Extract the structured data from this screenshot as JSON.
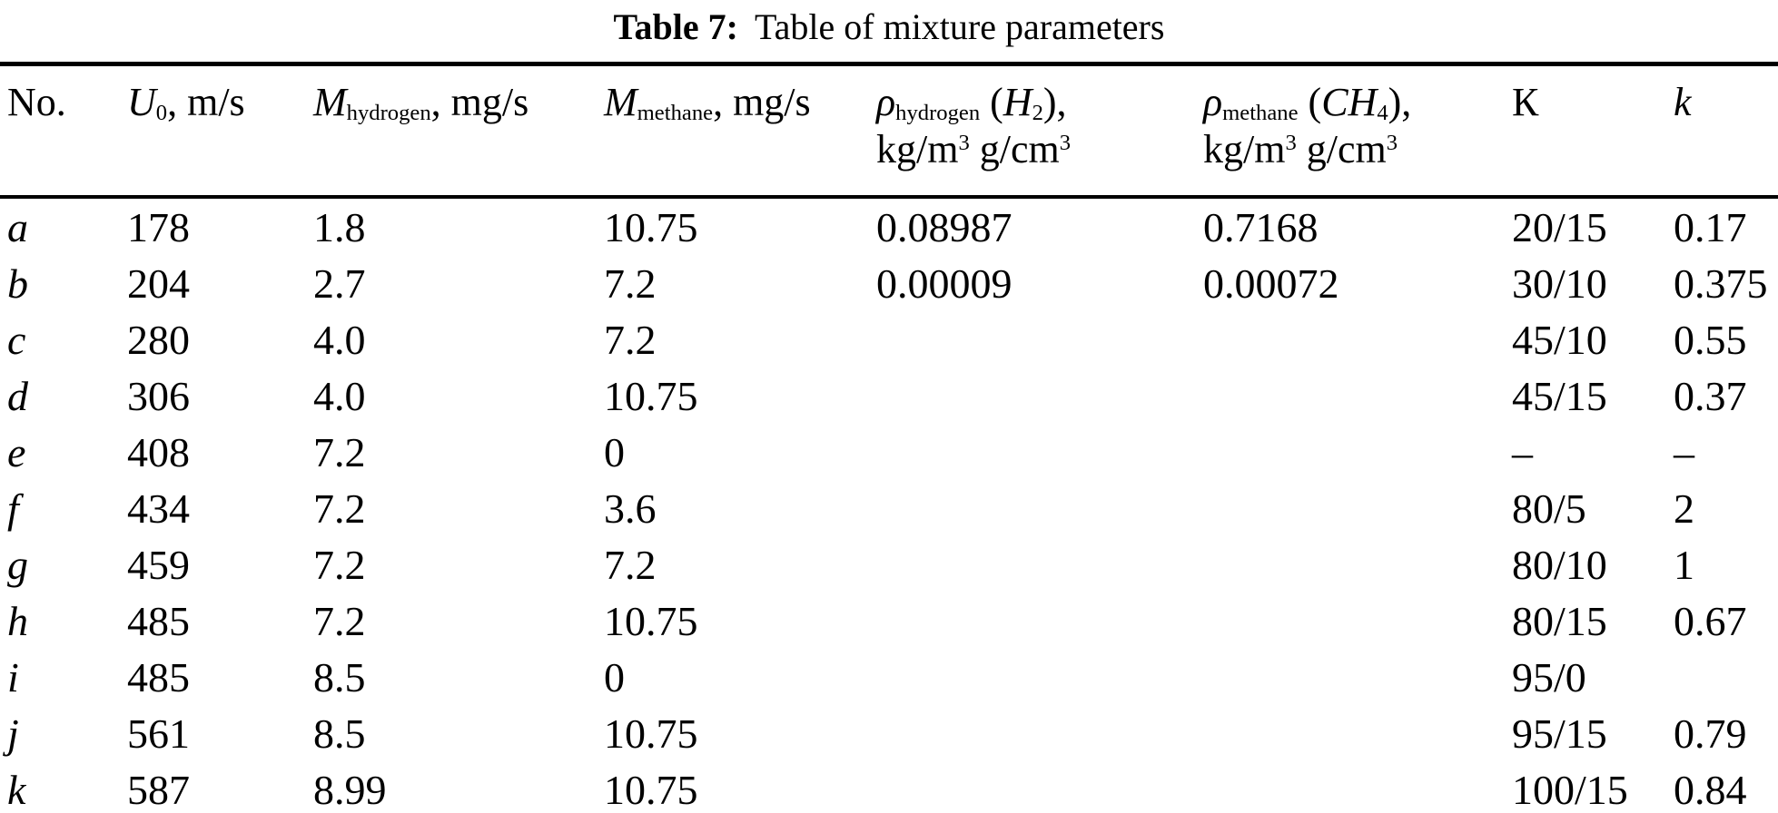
{
  "page": {
    "background_color": "#ffffff",
    "text_color": "#000000"
  },
  "caption": {
    "label": "Table 7:",
    "text": "Table of mixture parameters"
  },
  "table": {
    "header": {
      "no": "No.",
      "u0": {
        "main": "U",
        "sub": "0",
        "tail": ", m/s"
      },
      "mh": {
        "main": "M",
        "sub": "hydrogen",
        "tail": ", mg/s"
      },
      "mm": {
        "main": "M",
        "sub": "methane",
        "tail": ", mg/s"
      },
      "rh": {
        "main": "ρ",
        "sub": "hydrogen",
        "open": " (",
        "formula": "H",
        "formula_sub": "2",
        "close": "),",
        "unit1": "kg/m",
        "unit1_sup": "3",
        "unit2": " g/cm",
        "unit2_sup": "3"
      },
      "rm": {
        "main": "ρ",
        "sub": "methane",
        "open": " (",
        "formula": "CH",
        "formula_sub": "4",
        "close": "),",
        "unit1": "kg/m",
        "unit1_sup": "3",
        "unit2": " g/cm",
        "unit2_sup": "3"
      },
      "K_big": "К",
      "k_small": "k"
    },
    "rows": [
      {
        "no": "a",
        "u0": "178",
        "mh": "1.8",
        "mm": "10.75",
        "rh": "0.08987",
        "rm": "0.7168",
        "K": "20/15",
        "k": "0.17"
      },
      {
        "no": "b",
        "u0": "204",
        "mh": "2.7",
        "mm": "7.2",
        "rh": "0.00009",
        "rm": "0.00072",
        "K": "30/10",
        "k": "0.375"
      },
      {
        "no": "c",
        "u0": "280",
        "mh": "4.0",
        "mm": "7.2",
        "rh": "",
        "rm": "",
        "K": "45/10",
        "k": "0.55"
      },
      {
        "no": "d",
        "u0": "306",
        "mh": "4.0",
        "mm": "10.75",
        "rh": "",
        "rm": "",
        "K": "45/15",
        "k": "0.37"
      },
      {
        "no": "e",
        "u0": "408",
        "mh": "7.2",
        "mm": "0",
        "rh": "",
        "rm": "",
        "K": "–",
        "k": "–"
      },
      {
        "no": "f",
        "u0": "434",
        "mh": "7.2",
        "mm": "3.6",
        "rh": "",
        "rm": "",
        "K": "80/5",
        "k": "2"
      },
      {
        "no": "g",
        "u0": "459",
        "mh": "7.2",
        "mm": "7.2",
        "rh": "",
        "rm": "",
        "K": "80/10",
        "k": "1"
      },
      {
        "no": "h",
        "u0": "485",
        "mh": "7.2",
        "mm": "10.75",
        "rh": "",
        "rm": "",
        "K": "80/15",
        "k": "0.67"
      },
      {
        "no": "i",
        "u0": "485",
        "mh": "8.5",
        "mm": "0",
        "rh": "",
        "rm": "",
        "K": "95/0",
        "k": ""
      },
      {
        "no": "j",
        "u0": "561",
        "mh": "8.5",
        "mm": "10.75",
        "rh": "",
        "rm": "",
        "K": "95/15",
        "k": "0.79"
      },
      {
        "no": "k",
        "u0": "587",
        "mh": "8.99",
        "mm": "10.75",
        "rh": "",
        "rm": "",
        "K": "100/15",
        "k": "0.84"
      }
    ]
  }
}
